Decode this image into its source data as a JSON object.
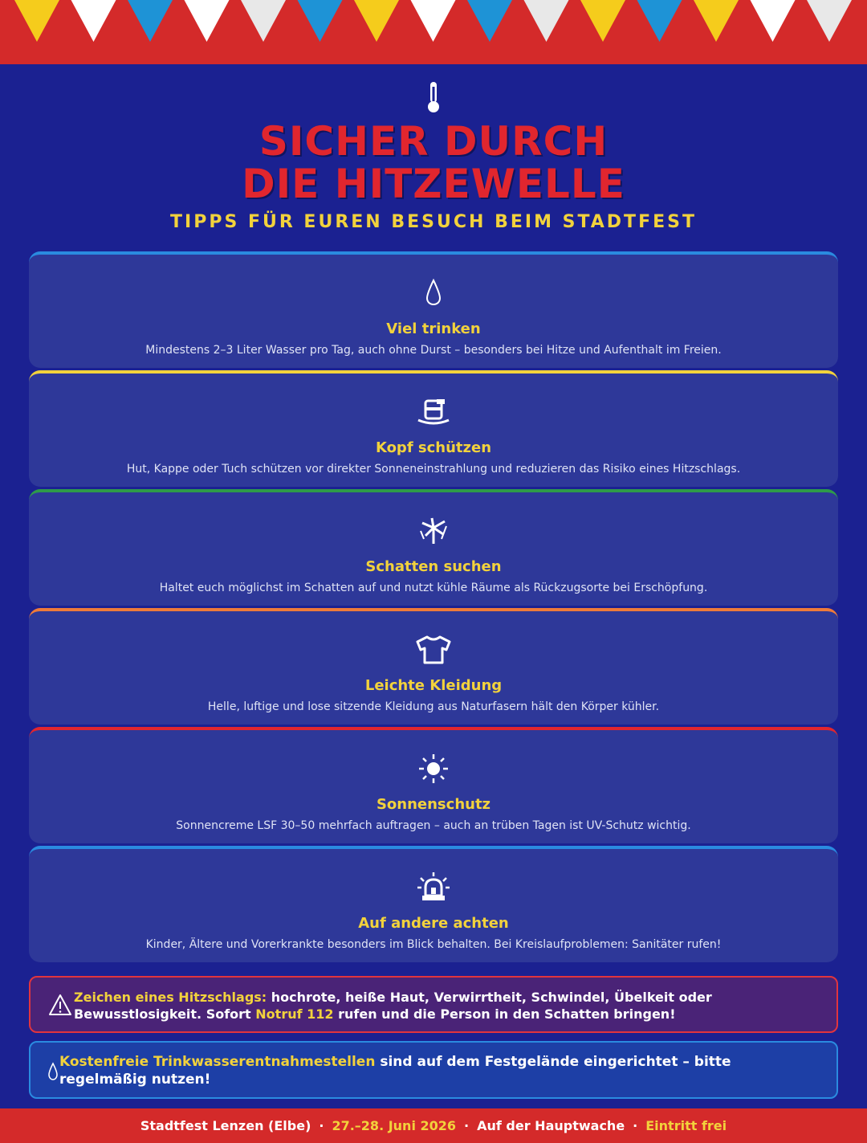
{
  "banner": {
    "flag_colors": [
      "#f5cc1c",
      "#ffffff",
      "#1e93d6",
      "#ffffff",
      "#e8e8e8",
      "#1e93d6",
      "#f5cc1c",
      "#ffffff",
      "#1e93d6",
      "#e8e8e8",
      "#f5cc1c",
      "#1e93d6",
      "#f5cc1c",
      "#ffffff",
      "#e8e8e8"
    ],
    "background": "#d42a2a"
  },
  "hero": {
    "icon": "thermometer-icon",
    "title_line1": "SICHER DURCH",
    "title_line2": "DIE HITZEWELLE",
    "subtitle": "TIPPS FÜR EUREN BESUCH BEIM STADTFEST"
  },
  "tips": [
    {
      "icon": "droplet-icon",
      "title": "Viel trinken",
      "desc": "Mindestens 2–3 Liter Wasser pro Tag, auch ohne Durst – besonders bei Hitze und Aufenthalt im Freien.",
      "accent": "#2a8be0"
    },
    {
      "icon": "hat-icon",
      "title": "Kopf schützen",
      "desc": "Hut, Kappe oder Tuch schützen vor direkter Sonneneinstrahlung und reduzieren das Risiko eines Hitzschlags.",
      "accent": "#f2d23c"
    },
    {
      "icon": "palm-tree-icon",
      "title": "Schatten suchen",
      "desc": "Haltet euch möglichst im Schatten auf und nutzt kühle Räume als Rückzugsorte bei Erschöpfung.",
      "accent": "#2e9b4a"
    },
    {
      "icon": "tshirt-icon",
      "title": "Leichte Kleidung",
      "desc": "Helle, luftige und lose sitzende Kleidung aus Naturfasern hält den Körper kühler.",
      "accent": "#ee7b3a"
    },
    {
      "icon": "sun-icon",
      "title": "Sonnenschutz",
      "desc": "Sonnencreme LSF 30–50 mehrfach auftragen – auch an trüben Tagen ist UV-Schutz wichtig.",
      "accent": "#e1262e"
    },
    {
      "icon": "siren-icon",
      "title": "Auf andere achten",
      "desc": "Kinder, Ältere und Vorerkrankte besonders im Blick behalten. Bei Kreislaufproblemen: Sanitäter rufen!",
      "accent": "#2a8be0"
    }
  ],
  "warning": {
    "icon": "warning-icon",
    "lead": "Zeichen eines Hitzschlags:",
    "text1": " hochrote, heiße Haut, Verwirrtheit, Schwindel, Übelkeit oder Bewusstlosigkeit. Sofort ",
    "emergency": "Notruf 112",
    "text2": " rufen und die Person in den Schatten bringen!"
  },
  "water_info": {
    "icon": "droplet-icon",
    "lead": "Kostenfreie Trinkwasserentnahmestellen",
    "text": " sind auf dem Festgelände eingerichtet – bitte regelmäßig nutzen!"
  },
  "footer": {
    "event": "Stadtfest Lenzen (Elbe)",
    "date": "27.–28. Juni 2026",
    "location": "Auf der Hauptwache",
    "admission": "Eintritt frei",
    "separator": "·"
  }
}
